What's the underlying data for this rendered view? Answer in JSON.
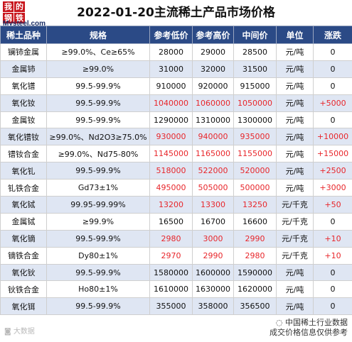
{
  "logo": {
    "chars": [
      "我",
      "的",
      "钢",
      "铁"
    ],
    "brand": "Mysteel.com"
  },
  "title": "2022-01-20主流稀土产品市场价格",
  "columns": [
    "稀土品种",
    "规格",
    "参考低价",
    "参考高价",
    "中间价",
    "单位",
    "涨跌"
  ],
  "rows": [
    {
      "name": "镧铈金属",
      "spec": "≥99.0%、Ce≥65%",
      "low": "28000",
      "high": "29000",
      "mid": "28500",
      "unit": "元/吨",
      "chg": "0",
      "red": false
    },
    {
      "name": "金属铈",
      "spec": "≥99.0%",
      "low": "31000",
      "high": "32000",
      "mid": "31500",
      "unit": "元/吨",
      "chg": "0",
      "red": false
    },
    {
      "name": "氧化镨",
      "spec": "99.5-99.9%",
      "low": "910000",
      "high": "920000",
      "mid": "915000",
      "unit": "元/吨",
      "chg": "0",
      "red": false
    },
    {
      "name": "氧化钕",
      "spec": "99.5-99.9%",
      "low": "1040000",
      "high": "1060000",
      "mid": "1050000",
      "unit": "元/吨",
      "chg": "+5000",
      "red": true
    },
    {
      "name": "金属钕",
      "spec": "99.5-99.9%",
      "low": "1290000",
      "high": "1310000",
      "mid": "1300000",
      "unit": "元/吨",
      "chg": "0",
      "red": false
    },
    {
      "name": "氧化镨钕",
      "spec": "≥99.0%、Nd2O3≥75.0%",
      "low": "930000",
      "high": "940000",
      "mid": "935000",
      "unit": "元/吨",
      "chg": "+10000",
      "red": true
    },
    {
      "name": "镨钕合金",
      "spec": "≥99.0%、Nd75-80%",
      "low": "1145000",
      "high": "1165000",
      "mid": "1155000",
      "unit": "元/吨",
      "chg": "+15000",
      "red": true
    },
    {
      "name": "氧化钆",
      "spec": "99.5-99.9%",
      "low": "518000",
      "high": "522000",
      "mid": "520000",
      "unit": "元/吨",
      "chg": "+2500",
      "red": true
    },
    {
      "name": "钆铁合金",
      "spec": "Gd73±1%",
      "low": "495000",
      "high": "505000",
      "mid": "500000",
      "unit": "元/吨",
      "chg": "+3000",
      "red": true
    },
    {
      "name": "氧化铽",
      "spec": "99.95-99.99%",
      "low": "13200",
      "high": "13300",
      "mid": "13250",
      "unit": "元/千克",
      "chg": "+50",
      "red": true
    },
    {
      "name": "金属铽",
      "spec": "≥99.9%",
      "low": "16500",
      "high": "16700",
      "mid": "16600",
      "unit": "元/千克",
      "chg": "0",
      "red": false
    },
    {
      "name": "氧化镝",
      "spec": "99.5-99.9%",
      "low": "2980",
      "high": "3000",
      "mid": "2990",
      "unit": "元/千克",
      "chg": "+10",
      "red": true
    },
    {
      "name": "镝铁合金",
      "spec": "Dy80±1%",
      "low": "2970",
      "high": "2990",
      "mid": "2980",
      "unit": "元/千克",
      "chg": "+10",
      "red": true
    },
    {
      "name": "氧化钬",
      "spec": "99.5-99.9%",
      "low": "1580000",
      "high": "1600000",
      "mid": "1590000",
      "unit": "元/吨",
      "chg": "0",
      "red": false
    },
    {
      "name": "钬铁合金",
      "spec": "Ho80±1%",
      "low": "1610000",
      "high": "1630000",
      "mid": "1620000",
      "unit": "元/吨",
      "chg": "0",
      "red": false
    },
    {
      "name": "氧化铒",
      "spec": "99.5-99.9%",
      "low": "355000",
      "high": "358000",
      "mid": "356500",
      "unit": "元/吨",
      "chg": "0",
      "red": false
    }
  ],
  "watermark_left": "大数据",
  "watermark_right": [
    "中国稀土行业数据",
    "成交价格信息仅供参考"
  ],
  "colors": {
    "header_bg": "#2b4a86",
    "alt_row": "#dfe6f3",
    "up_red": "#e8262b",
    "logo_red": "#c8161d"
  }
}
